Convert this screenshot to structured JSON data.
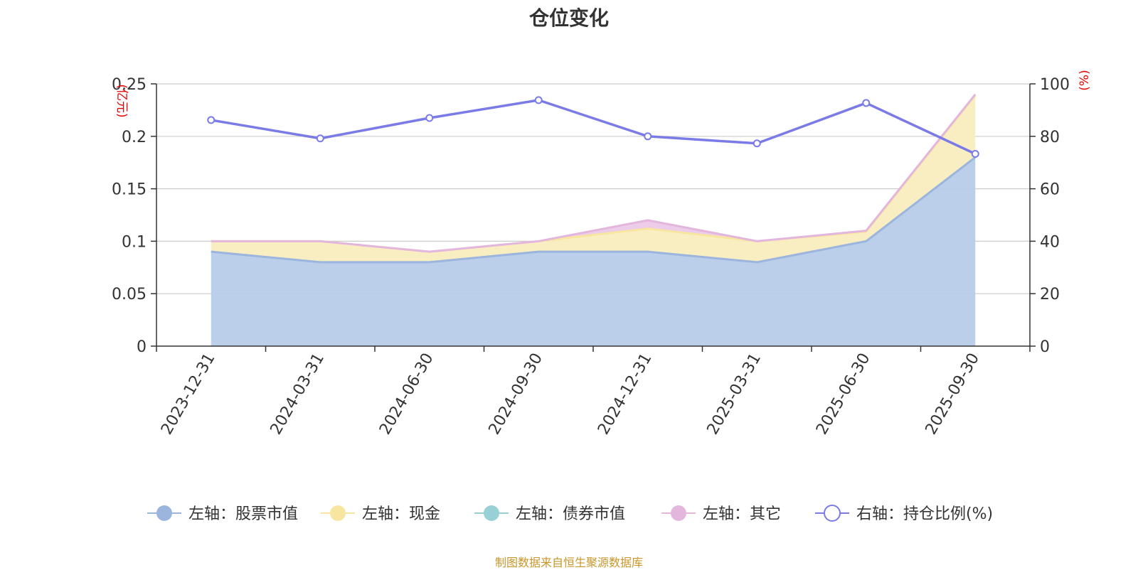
{
  "chart_data": {
    "type": "area",
    "title": "仓位变化",
    "left_axis": {
      "unit": "(亿元)",
      "ticks": [
        "0",
        "0.05",
        "0.1",
        "0.15",
        "0.2",
        "0.25"
      ],
      "ylim": [
        0,
        0.25
      ]
    },
    "right_axis": {
      "unit": "(%)",
      "ticks": [
        "0",
        "20",
        "40",
        "60",
        "80",
        "100"
      ],
      "ylim": [
        0,
        100
      ]
    },
    "categories": [
      "2023-12-31",
      "2024-03-31",
      "2024-06-30",
      "2024-09-30",
      "2024-12-31",
      "2025-03-31",
      "2025-06-30",
      "2025-09-30"
    ],
    "grid": true,
    "stacked": true,
    "series": [
      {
        "name": "左轴：股票市值",
        "axis": "left",
        "color": "#9bb5de",
        "fill": "#b7cbe9",
        "values": [
          0.09,
          0.08,
          0.08,
          0.09,
          0.09,
          0.08,
          0.1,
          0.18
        ]
      },
      {
        "name": "左轴：现金",
        "axis": "left",
        "color": "#f8e6a0",
        "fill": "#f9edbf",
        "values": [
          0.01,
          0.02,
          0.01,
          0.01,
          0.022,
          0.02,
          0.009,
          0.059
        ]
      },
      {
        "name": "左轴：债券市值",
        "axis": "left",
        "color": "#97d1d6",
        "fill": "#c2e6e8",
        "values": [
          0,
          0,
          0,
          0,
          0,
          0,
          0,
          0
        ]
      },
      {
        "name": "左轴：其它",
        "axis": "left",
        "color": "#e2b6dd",
        "fill": "#ecc9e8",
        "values": [
          0,
          0,
          0,
          0,
          0.008,
          0,
          0.001,
          0.001
        ]
      },
      {
        "name": "右轴：持仓比例(%)",
        "axis": "right",
        "type": "line",
        "color": "#7b7be8",
        "values": [
          86.2,
          79.2,
          87,
          93.8,
          80,
          77.3,
          92.7,
          73.3
        ]
      }
    ],
    "legend_position": "bottom"
  },
  "source": "制图数据来自恒生聚源数据库"
}
